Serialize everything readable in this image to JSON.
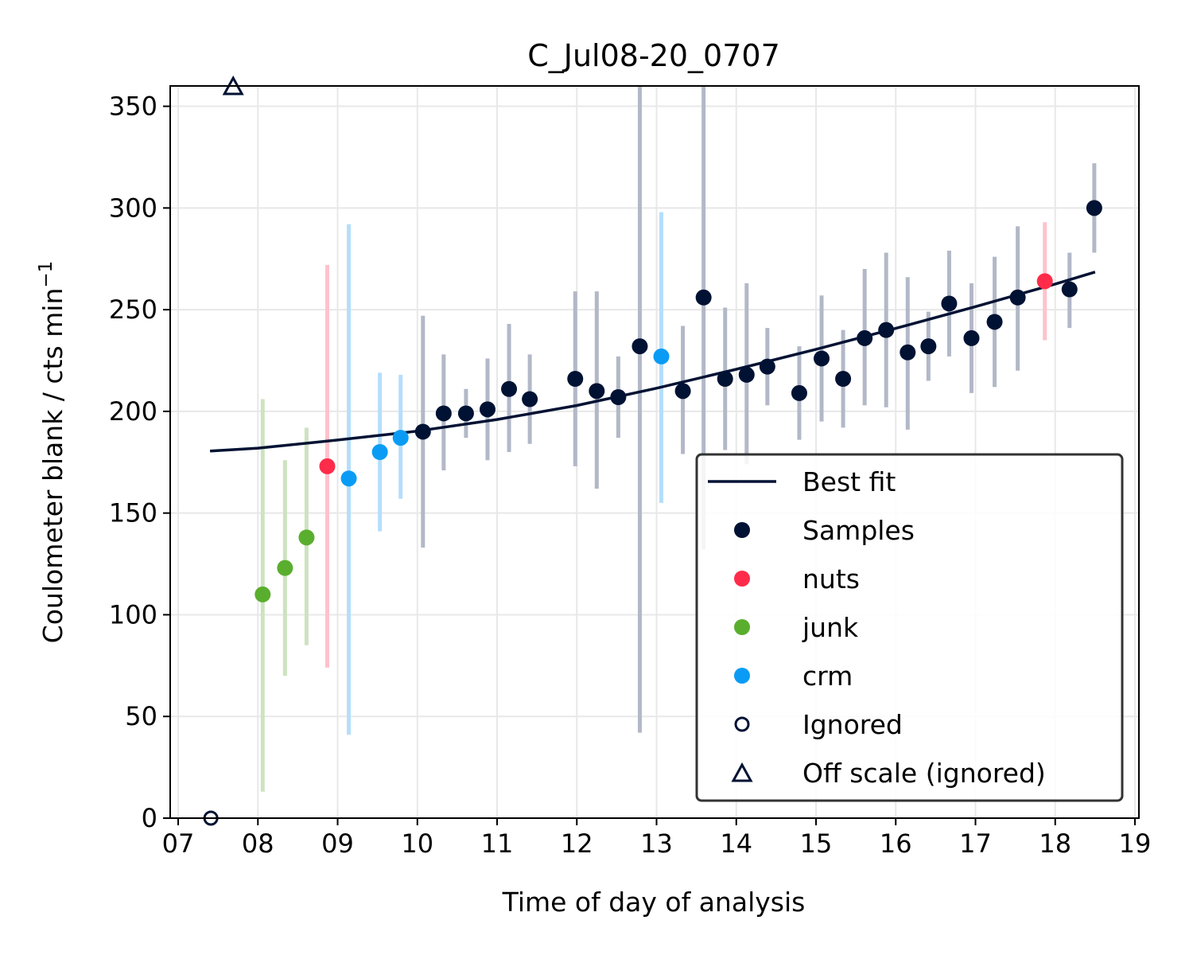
{
  "chart_data": {
    "type": "scatter",
    "title": "C_Jul08-20_0707",
    "xlabel": "Time of day of analysis",
    "ylabel": "Coulometer blank / cts min",
    "ylabel_exponent": "−1",
    "xlim": [
      6.9,
      19.05
    ],
    "ylim": [
      0,
      360
    ],
    "grid": true,
    "legend_position": "lower right",
    "x_ticks": [
      7,
      8,
      9,
      10,
      11,
      12,
      13,
      14,
      15,
      16,
      17,
      18,
      19
    ],
    "x_tick_labels": [
      "07",
      "08",
      "09",
      "10",
      "11",
      "12",
      "13",
      "14",
      "15",
      "16",
      "17",
      "18",
      "19"
    ],
    "y_ticks": [
      0,
      50,
      100,
      150,
      200,
      250,
      300,
      350
    ],
    "y_tick_labels": [
      "0",
      "50",
      "100",
      "150",
      "200",
      "250",
      "300",
      "350"
    ],
    "colors": {
      "samples": "#001233",
      "nuts": "#ff2b4a",
      "junk": "#5aae2e",
      "crm": "#0a9cf5",
      "fit": "#001233",
      "samples_err": "#b2b8c7",
      "nuts_err": "#ffc2cb",
      "junk_err": "#cde3c0",
      "crm_err": "#b5defb"
    },
    "best_fit": {
      "name": "Best fit",
      "x": [
        7.4,
        8.0,
        9.0,
        10.0,
        11.0,
        12.0,
        13.0,
        14.0,
        15.0,
        16.0,
        17.0,
        18.0,
        18.5
      ],
      "y": [
        180.5,
        181.9,
        185.9,
        190.3,
        196.0,
        202.9,
        211.4,
        220.7,
        230.5,
        240.8,
        251.5,
        262.6,
        268.5
      ]
    },
    "series": [
      {
        "name": "Samples",
        "key": "samples",
        "points": [
          {
            "x": 10.07,
            "y": 190,
            "lo": 133,
            "hi": 247
          },
          {
            "x": 10.33,
            "y": 199,
            "lo": 171,
            "hi": 228
          },
          {
            "x": 10.61,
            "y": 199,
            "lo": 187,
            "hi": 211
          },
          {
            "x": 10.88,
            "y": 201,
            "lo": 176,
            "hi": 226
          },
          {
            "x": 11.15,
            "y": 211,
            "lo": 180,
            "hi": 243
          },
          {
            "x": 11.41,
            "y": 206,
            "lo": 184,
            "hi": 228
          },
          {
            "x": 11.98,
            "y": 216,
            "lo": 173,
            "hi": 259
          },
          {
            "x": 12.25,
            "y": 210,
            "lo": 162,
            "hi": 259
          },
          {
            "x": 12.52,
            "y": 207,
            "lo": 187,
            "hi": 227
          },
          {
            "x": 12.79,
            "y": 232,
            "lo": 42,
            "hi": 360
          },
          {
            "x": 13.33,
            "y": 210,
            "lo": 179,
            "hi": 242
          },
          {
            "x": 13.59,
            "y": 256,
            "lo": 132,
            "hi": 360
          },
          {
            "x": 13.86,
            "y": 216,
            "lo": 181,
            "hi": 251
          },
          {
            "x": 14.13,
            "y": 218,
            "lo": 174,
            "hi": 263
          },
          {
            "x": 14.39,
            "y": 222,
            "lo": 203,
            "hi": 241
          },
          {
            "x": 14.79,
            "y": 209,
            "lo": 186,
            "hi": 232
          },
          {
            "x": 15.07,
            "y": 226,
            "lo": 195,
            "hi": 257
          },
          {
            "x": 15.34,
            "y": 216,
            "lo": 192,
            "hi": 240
          },
          {
            "x": 15.61,
            "y": 236,
            "lo": 203,
            "hi": 270
          },
          {
            "x": 15.88,
            "y": 240,
            "lo": 202,
            "hi": 278
          },
          {
            "x": 16.15,
            "y": 229,
            "lo": 191,
            "hi": 266
          },
          {
            "x": 16.41,
            "y": 232,
            "lo": 215,
            "hi": 249
          },
          {
            "x": 16.67,
            "y": 253,
            "lo": 227,
            "hi": 279
          },
          {
            "x": 16.95,
            "y": 236,
            "lo": 209,
            "hi": 263
          },
          {
            "x": 17.24,
            "y": 244,
            "lo": 212,
            "hi": 276
          },
          {
            "x": 17.53,
            "y": 256,
            "lo": 220,
            "hi": 291
          },
          {
            "x": 18.18,
            "y": 260,
            "lo": 241,
            "hi": 278
          },
          {
            "x": 18.49,
            "y": 300,
            "lo": 278,
            "hi": 322
          }
        ]
      },
      {
        "name": "nuts",
        "key": "nuts",
        "points": [
          {
            "x": 8.87,
            "y": 173,
            "lo": 74,
            "hi": 272
          },
          {
            "x": 17.87,
            "y": 264,
            "lo": 235,
            "hi": 293
          }
        ]
      },
      {
        "name": "junk",
        "key": "junk",
        "points": [
          {
            "x": 8.06,
            "y": 110,
            "lo": 13,
            "hi": 206
          },
          {
            "x": 8.34,
            "y": 123,
            "lo": 70,
            "hi": 176
          },
          {
            "x": 8.61,
            "y": 138,
            "lo": 85,
            "hi": 192
          }
        ]
      },
      {
        "name": "crm",
        "key": "crm",
        "points": [
          {
            "x": 9.14,
            "y": 167,
            "lo": 41,
            "hi": 292
          },
          {
            "x": 9.53,
            "y": 180,
            "lo": 141,
            "hi": 219
          },
          {
            "x": 9.79,
            "y": 187,
            "lo": 157,
            "hi": 218
          },
          {
            "x": 13.06,
            "y": 227,
            "lo": 155,
            "hi": 298
          }
        ]
      }
    ],
    "ignored": {
      "name": "Ignored",
      "points": [
        {
          "x": 7.41,
          "y": 0
        }
      ]
    },
    "off_scale": {
      "name": "Off scale (ignored)",
      "points": [
        {
          "x": 7.69,
          "y": 360
        }
      ]
    },
    "legend": [
      "Best fit",
      "Samples",
      "nuts",
      "junk",
      "crm",
      "Ignored",
      "Off scale (ignored)"
    ]
  }
}
